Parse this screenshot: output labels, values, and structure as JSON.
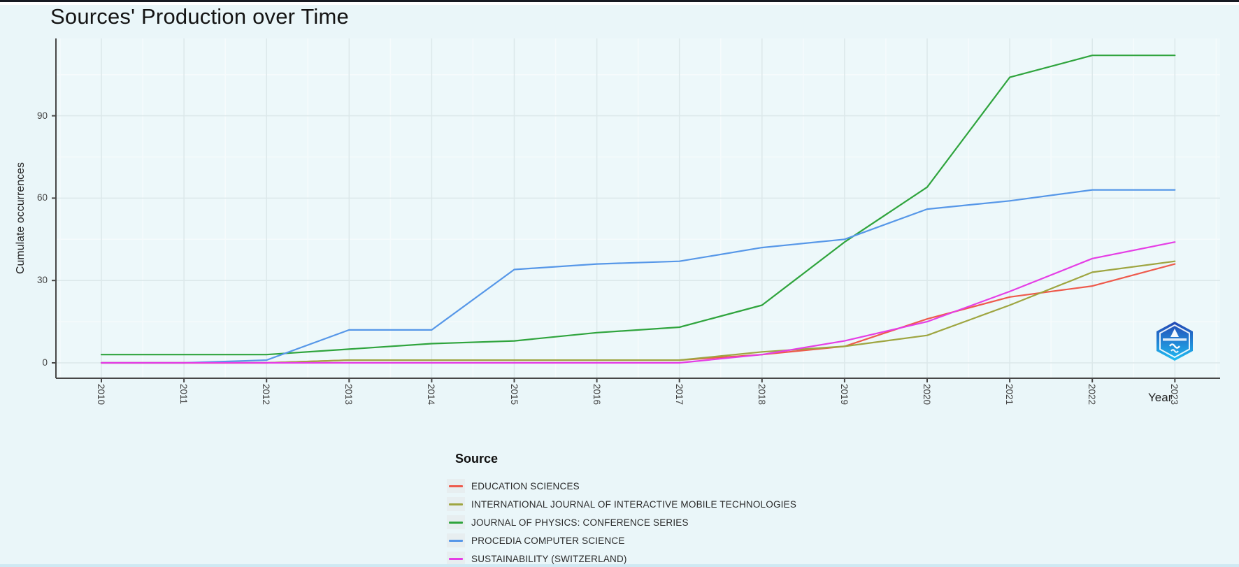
{
  "title": "Sources' Production over Time",
  "x_axis_label": "Year",
  "y_axis_label": "Cumulate occurrences",
  "legend_title": "Source",
  "icons": {
    "watermark": "hexagon-shield-logo"
  },
  "colors": {
    "page_bg": "#eaf6f9",
    "panel_bg": "#edf8fa",
    "grid_major": "#dce8ea",
    "grid_minor": "#f6fbfc",
    "axis": "#474747",
    "tick_text": "#444444",
    "legend_key_bg": "#e7eef0",
    "logo_blue_top": "#2447b4",
    "logo_blue_bottom": "#1fbdf2"
  },
  "chart_data": {
    "type": "line",
    "title": "Sources' Production over Time",
    "xlabel": "Year",
    "ylabel": "Cumulate occurrences",
    "x": [
      2010,
      2011,
      2012,
      2013,
      2014,
      2015,
      2016,
      2017,
      2018,
      2019,
      2020,
      2021,
      2022,
      2023
    ],
    "series": [
      {
        "name": "EDUCATION SCIENCES",
        "color": "#ee5a4c",
        "values": [
          0,
          0,
          0,
          1,
          1,
          1,
          1,
          1,
          3,
          6,
          16,
          24,
          28,
          36
        ]
      },
      {
        "name": "INTERNATIONAL JOURNAL OF INTERACTIVE MOBILE TECHNOLOGIES",
        "color": "#9ea540",
        "values": [
          0,
          0,
          0,
          1,
          1,
          1,
          1,
          1,
          4,
          6,
          10,
          21,
          33,
          37
        ]
      },
      {
        "name": "JOURNAL OF PHYSICS: CONFERENCE SERIES",
        "color": "#2fa43d",
        "values": [
          3,
          3,
          3,
          5,
          7,
          8,
          11,
          13,
          21,
          44,
          64,
          104,
          112,
          112
        ]
      },
      {
        "name": "PROCEDIA COMPUTER SCIENCE",
        "color": "#5697e8",
        "values": [
          0,
          0,
          1,
          12,
          12,
          34,
          36,
          37,
          42,
          45,
          56,
          59,
          63,
          63
        ]
      },
      {
        "name": "SUSTAINABILITY (SWITZERLAND)",
        "color": "#e53ee5",
        "values": [
          0,
          0,
          0,
          0,
          0,
          0,
          0,
          0,
          3,
          8,
          15,
          26,
          38,
          44
        ]
      }
    ],
    "y_ticks": [
      0,
      30,
      60,
      90
    ],
    "y_minor_gridlines": [
      15,
      45,
      75,
      105
    ],
    "ylim": [
      0,
      118
    ],
    "grid": true,
    "legend_position": "bottom-left"
  }
}
